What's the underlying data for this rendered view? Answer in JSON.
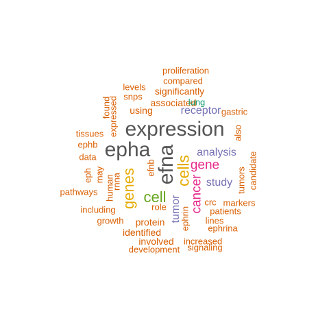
{
  "palette": {
    "orange": "#D95F02",
    "gray": "#555555",
    "purple": "#7570B3",
    "magenta": "#E7298A",
    "gold": "#E6AB02",
    "green": "#66A61E",
    "teal": "#1B9E77"
  },
  "words": [
    {
      "text": "proliferation",
      "color": "#D95F02",
      "rotated": false
    },
    {
      "text": "compared",
      "color": "#D95F02",
      "rotated": false
    },
    {
      "text": "levels",
      "color": "#D95F02",
      "rotated": false
    },
    {
      "text": "significantly",
      "color": "#D95F02",
      "rotated": false
    },
    {
      "text": "snps",
      "color": "#D95F02",
      "rotated": false
    },
    {
      "text": "found",
      "color": "#D95F02",
      "rotated": true
    },
    {
      "text": "associated",
      "color": "#D95F02",
      "rotated": false
    },
    {
      "text": "lung",
      "color": "#1B9E77",
      "rotated": false
    },
    {
      "text": "using",
      "color": "#D95F02",
      "rotated": false
    },
    {
      "text": "receptor",
      "color": "#7570B3",
      "rotated": false
    },
    {
      "text": "gastric",
      "color": "#D95F02",
      "rotated": false
    },
    {
      "text": "expressed",
      "color": "#D95F02",
      "rotated": true
    },
    {
      "text": "tissues",
      "color": "#D95F02",
      "rotated": false
    },
    {
      "text": "expression",
      "color": "#555555",
      "rotated": false
    },
    {
      "text": "also",
      "color": "#D95F02",
      "rotated": true
    },
    {
      "text": "ephb",
      "color": "#D95F02",
      "rotated": false
    },
    {
      "text": "epha",
      "color": "#555555",
      "rotated": false
    },
    {
      "text": "efna",
      "color": "#555555",
      "rotated": true
    },
    {
      "text": "analysis",
      "color": "#7570B3",
      "rotated": false
    },
    {
      "text": "data",
      "color": "#D95F02",
      "rotated": false
    },
    {
      "text": "candidate",
      "color": "#D95F02",
      "rotated": true
    },
    {
      "text": "gene",
      "color": "#E7298A",
      "rotated": false
    },
    {
      "text": "cells",
      "color": "#E6AB02",
      "rotated": true
    },
    {
      "text": "efnb",
      "color": "#D95F02",
      "rotated": true
    },
    {
      "text": "eph",
      "color": "#D95F02",
      "rotated": true
    },
    {
      "text": "may",
      "color": "#D95F02",
      "rotated": true
    },
    {
      "text": "rnna",
      "color": "#D95F02",
      "rotated": true
    },
    {
      "text": "tumors",
      "color": "#D95F02",
      "rotated": true
    },
    {
      "text": "genes",
      "color": "#E6AB02",
      "rotated": true
    },
    {
      "text": "study",
      "color": "#7570B3",
      "rotated": false
    },
    {
      "text": "human",
      "color": "#D95F02",
      "rotated": true
    },
    {
      "text": "pathways",
      "color": "#D95F02",
      "rotated": false
    },
    {
      "text": "cancer",
      "color": "#E7298A",
      "rotated": true
    },
    {
      "text": "cell",
      "color": "#66A61E",
      "rotated": false
    },
    {
      "text": "crc",
      "color": "#D95F02",
      "rotated": false
    },
    {
      "text": "markers",
      "color": "#D95F02",
      "rotated": false
    },
    {
      "text": "including",
      "color": "#D95F02",
      "rotated": false
    },
    {
      "text": "role",
      "color": "#D95F02",
      "rotated": false
    },
    {
      "text": "tumor",
      "color": "#7570B3",
      "rotated": true
    },
    {
      "text": "patients",
      "color": "#D95F02",
      "rotated": false
    },
    {
      "text": "growth",
      "color": "#D95F02",
      "rotated": false
    },
    {
      "text": "protein",
      "color": "#D95F02",
      "rotated": false
    },
    {
      "text": "ephrin",
      "color": "#D95F02",
      "rotated": true
    },
    {
      "text": "lines",
      "color": "#D95F02",
      "rotated": false
    },
    {
      "text": "ephrina",
      "color": "#D95F02",
      "rotated": false
    },
    {
      "text": "identified",
      "color": "#D95F02",
      "rotated": false
    },
    {
      "text": "involved",
      "color": "#D95F02",
      "rotated": false
    },
    {
      "text": "increased",
      "color": "#D95F02",
      "rotated": false
    },
    {
      "text": "development",
      "color": "#D95F02",
      "rotated": false
    },
    {
      "text": "signaling",
      "color": "#D95F02",
      "rotated": false
    }
  ]
}
